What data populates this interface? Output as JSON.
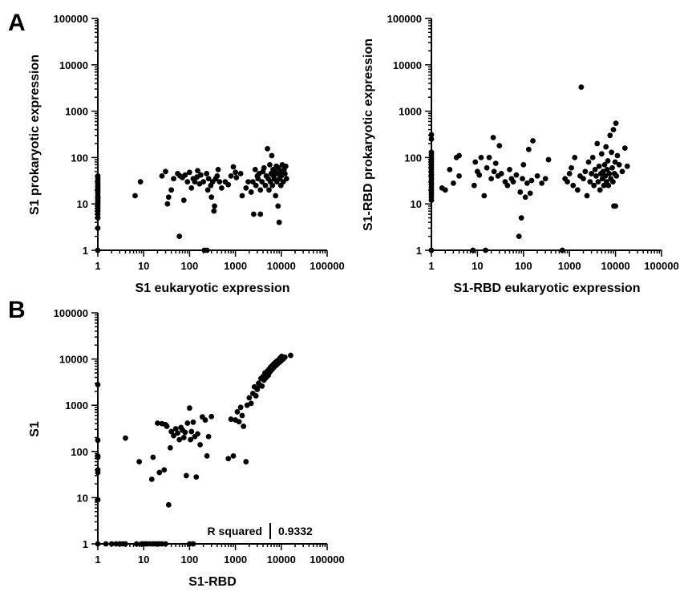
{
  "panels": {
    "a": {
      "letter": "A"
    },
    "b": {
      "letter": "B"
    }
  },
  "annotation": {
    "label": "R squared",
    "value": "0.9332"
  },
  "chart_data": [
    {
      "panel": "A",
      "type": "scatter",
      "title": "",
      "xlabel": "S1 eukaryotic expression",
      "ylabel": "S1 prokaryotic expression",
      "xscale": "log",
      "yscale": "log",
      "xlim": [
        1,
        100000
      ],
      "ylim": [
        1,
        100000
      ],
      "xticks": [
        "1",
        "10",
        "100",
        "1000",
        "10000",
        "100000"
      ],
      "yticks": [
        "1",
        "10",
        "100",
        "1000",
        "10000",
        "100000"
      ],
      "grid": false,
      "points": [
        [
          1,
          1
        ],
        [
          1,
          3
        ],
        [
          1,
          5
        ],
        [
          1,
          6
        ],
        [
          1,
          7
        ],
        [
          1,
          8
        ],
        [
          1,
          9
        ],
        [
          1,
          10
        ],
        [
          1,
          11
        ],
        [
          1,
          12
        ],
        [
          1,
          13
        ],
        [
          1,
          14
        ],
        [
          1,
          15
        ],
        [
          1,
          17
        ],
        [
          1,
          19
        ],
        [
          1,
          21
        ],
        [
          1,
          23
        ],
        [
          1,
          25
        ],
        [
          1,
          28
        ],
        [
          1,
          32
        ],
        [
          1,
          36
        ],
        [
          1,
          40
        ],
        [
          6.5,
          15
        ],
        [
          8.5,
          30
        ],
        [
          25,
          40
        ],
        [
          30,
          50
        ],
        [
          33,
          10
        ],
        [
          35,
          14
        ],
        [
          40,
          20
        ],
        [
          45,
          35
        ],
        [
          55,
          45
        ],
        [
          60,
          2
        ],
        [
          62,
          40
        ],
        [
          70,
          37
        ],
        [
          75,
          12
        ],
        [
          80,
          42
        ],
        [
          90,
          30
        ],
        [
          100,
          48
        ],
        [
          110,
          22
        ],
        [
          120,
          35
        ],
        [
          130,
          30
        ],
        [
          145,
          38
        ],
        [
          150,
          52
        ],
        [
          165,
          27
        ],
        [
          175,
          42
        ],
        [
          200,
          30
        ],
        [
          210,
          1
        ],
        [
          235,
          45
        ],
        [
          240,
          1
        ],
        [
          250,
          20
        ],
        [
          260,
          35
        ],
        [
          290,
          25
        ],
        [
          300,
          14
        ],
        [
          320,
          30
        ],
        [
          340,
          7
        ],
        [
          350,
          9
        ],
        [
          370,
          35
        ],
        [
          400,
          40
        ],
        [
          420,
          55
        ],
        [
          450,
          30
        ],
        [
          500,
          22
        ],
        [
          600,
          30
        ],
        [
          700,
          26
        ],
        [
          800,
          40
        ],
        [
          900,
          63
        ],
        [
          1000,
          48
        ],
        [
          1050,
          37
        ],
        [
          1300,
          45
        ],
        [
          1400,
          15
        ],
        [
          1700,
          22
        ],
        [
          1900,
          30
        ],
        [
          2200,
          18
        ],
        [
          2500,
          6
        ],
        [
          3000,
          40
        ],
        [
          3500,
          6
        ],
        [
          2400,
          30
        ],
        [
          2700,
          55
        ],
        [
          2800,
          25
        ],
        [
          3100,
          35
        ],
        [
          3300,
          45
        ],
        [
          3500,
          20
        ],
        [
          3800,
          30
        ],
        [
          4000,
          50
        ],
        [
          4200,
          60
        ],
        [
          4500,
          25
        ],
        [
          4700,
          40
        ],
        [
          5000,
          155
        ],
        [
          5200,
          35
        ],
        [
          5400,
          20
        ],
        [
          5600,
          70
        ],
        [
          5800,
          30
        ],
        [
          6000,
          45
        ],
        [
          6200,
          110
        ],
        [
          6400,
          25
        ],
        [
          6600,
          55
        ],
        [
          6800,
          40
        ],
        [
          7000,
          35
        ],
        [
          7200,
          50
        ],
        [
          7500,
          15
        ],
        [
          7800,
          65
        ],
        [
          8000,
          30
        ],
        [
          8200,
          45
        ],
        [
          8500,
          9
        ],
        [
          8700,
          60
        ],
        [
          9000,
          4
        ],
        [
          9200,
          35
        ],
        [
          9500,
          50
        ],
        [
          9800,
          25
        ],
        [
          10000,
          40
        ],
        [
          10500,
          70
        ],
        [
          11000,
          30
        ],
        [
          11500,
          55
        ],
        [
          12000,
          45
        ],
        [
          12500,
          65
        ],
        [
          13000,
          35
        ]
      ]
    },
    {
      "panel": "A",
      "type": "scatter",
      "title": "",
      "xlabel": "S1-RBD eukaryotic expression",
      "ylabel": "S1-RBD prokaryotic expression",
      "xscale": "log",
      "yscale": "log",
      "xlim": [
        1,
        100000
      ],
      "ylim": [
        1,
        100000
      ],
      "xticks": [
        "1",
        "10",
        "100",
        "1000",
        "10000",
        "100000"
      ],
      "yticks": [
        "1",
        "10",
        "100",
        "1000",
        "10000",
        "100000"
      ],
      "grid": false,
      "points": [
        [
          1,
          1
        ],
        [
          1,
          12
        ],
        [
          1,
          14
        ],
        [
          1,
          16
        ],
        [
          1,
          18
        ],
        [
          1,
          20
        ],
        [
          1,
          23
        ],
        [
          1,
          26
        ],
        [
          1,
          29
        ],
        [
          1,
          33
        ],
        [
          1,
          37
        ],
        [
          1,
          42
        ],
        [
          1,
          48
        ],
        [
          1,
          55
        ],
        [
          1,
          62
        ],
        [
          1,
          70
        ],
        [
          1,
          80
        ],
        [
          1,
          90
        ],
        [
          1,
          100
        ],
        [
          1,
          115
        ],
        [
          1,
          130
        ],
        [
          1,
          250
        ],
        [
          1,
          310
        ],
        [
          1.7,
          22
        ],
        [
          2,
          20
        ],
        [
          2.5,
          55
        ],
        [
          3,
          28
        ],
        [
          3.5,
          100
        ],
        [
          4,
          40
        ],
        [
          4,
          110
        ],
        [
          8,
          1
        ],
        [
          8.5,
          25
        ],
        [
          9,
          80
        ],
        [
          10,
          50
        ],
        [
          11,
          42
        ],
        [
          12,
          100
        ],
        [
          14,
          15
        ],
        [
          15,
          1
        ],
        [
          16,
          60
        ],
        [
          18,
          100
        ],
        [
          20,
          35
        ],
        [
          22,
          270
        ],
        [
          23,
          50
        ],
        [
          25,
          75
        ],
        [
          28,
          40
        ],
        [
          30,
          180
        ],
        [
          33,
          45
        ],
        [
          40,
          30
        ],
        [
          45,
          25
        ],
        [
          50,
          55
        ],
        [
          55,
          35
        ],
        [
          60,
          30
        ],
        [
          70,
          42
        ],
        [
          80,
          2
        ],
        [
          85,
          18
        ],
        [
          90,
          5
        ],
        [
          95,
          35
        ],
        [
          100,
          70
        ],
        [
          110,
          14
        ],
        [
          120,
          28
        ],
        [
          130,
          150
        ],
        [
          140,
          17
        ],
        [
          150,
          32
        ],
        [
          160,
          230
        ],
        [
          200,
          40
        ],
        [
          250,
          28
        ],
        [
          300,
          35
        ],
        [
          350,
          90
        ],
        [
          700,
          1
        ],
        [
          800,
          35
        ],
        [
          900,
          30
        ],
        [
          1000,
          45
        ],
        [
          1100,
          60
        ],
        [
          1200,
          25
        ],
        [
          1300,
          100
        ],
        [
          1500,
          20
        ],
        [
          1700,
          40
        ],
        [
          1800,
          3300
        ],
        [
          2000,
          35
        ],
        [
          2200,
          50
        ],
        [
          2400,
          15
        ],
        [
          2600,
          80
        ],
        [
          2800,
          30
        ],
        [
          3000,
          45
        ],
        [
          3200,
          100
        ],
        [
          3400,
          25
        ],
        [
          3600,
          55
        ],
        [
          3800,
          40
        ],
        [
          4000,
          200
        ],
        [
          4200,
          30
        ],
        [
          4400,
          65
        ],
        [
          4600,
          20
        ],
        [
          4800,
          45
        ],
        [
          5000,
          120
        ],
        [
          5200,
          35
        ],
        [
          5400,
          50
        ],
        [
          5600,
          25
        ],
        [
          5800,
          70
        ],
        [
          6000,
          40
        ],
        [
          6200,
          170
        ],
        [
          6400,
          30
        ],
        [
          6600,
          55
        ],
        [
          6800,
          85
        ],
        [
          7000,
          25
        ],
        [
          7300,
          45
        ],
        [
          7600,
          300
        ],
        [
          7900,
          35
        ],
        [
          8200,
          130
        ],
        [
          8500,
          60
        ],
        [
          8800,
          30
        ],
        [
          9000,
          400
        ],
        [
          9200,
          9
        ],
        [
          9500,
          45
        ],
        [
          9800,
          80
        ],
        [
          10000,
          9
        ],
        [
          10200,
          550
        ],
        [
          10500,
          40
        ],
        [
          11000,
          110
        ],
        [
          12000,
          70
        ],
        [
          14000,
          50
        ],
        [
          16000,
          160
        ],
        [
          18000,
          65
        ]
      ]
    },
    {
      "panel": "B",
      "type": "scatter",
      "title": "",
      "xlabel": "S1-RBD",
      "ylabel": "S1",
      "xscale": "log",
      "yscale": "log",
      "xlim": [
        1,
        100000
      ],
      "ylim": [
        1,
        100000
      ],
      "xticks": [
        "1",
        "10",
        "100",
        "1000",
        "10000",
        "100000"
      ],
      "yticks": [
        "1",
        "10",
        "100",
        "1000",
        "10000",
        "100000"
      ],
      "grid": false,
      "points": [
        [
          1,
          1
        ],
        [
          1,
          9
        ],
        [
          1,
          35
        ],
        [
          1,
          40
        ],
        [
          1,
          75
        ],
        [
          1,
          80
        ],
        [
          1,
          175
        ],
        [
          1,
          2800
        ],
        [
          1.5,
          1
        ],
        [
          2,
          1
        ],
        [
          2.5,
          1
        ],
        [
          3,
          1
        ],
        [
          3.5,
          1
        ],
        [
          4,
          1
        ],
        [
          4,
          195
        ],
        [
          7,
          1
        ],
        [
          8,
          60
        ],
        [
          9,
          1
        ],
        [
          10,
          1
        ],
        [
          11,
          1
        ],
        [
          12,
          1
        ],
        [
          14,
          1
        ],
        [
          16,
          1
        ],
        [
          18,
          1
        ],
        [
          20,
          1
        ],
        [
          22,
          1
        ],
        [
          25,
          1
        ],
        [
          30,
          1
        ],
        [
          100,
          1
        ],
        [
          120,
          1
        ],
        [
          15,
          25
        ],
        [
          16,
          75
        ],
        [
          20,
          410
        ],
        [
          22,
          35
        ],
        [
          25,
          400
        ],
        [
          28,
          40
        ],
        [
          30,
          380
        ],
        [
          32,
          350
        ],
        [
          35,
          7
        ],
        [
          38,
          120
        ],
        [
          40,
          270
        ],
        [
          45,
          220
        ],
        [
          50,
          310
        ],
        [
          55,
          250
        ],
        [
          60,
          180
        ],
        [
          65,
          330
        ],
        [
          70,
          290
        ],
        [
          75,
          200
        ],
        [
          80,
          260
        ],
        [
          85,
          30
        ],
        [
          90,
          410
        ],
        [
          100,
          870
        ],
        [
          105,
          180
        ],
        [
          110,
          270
        ],
        [
          120,
          430
        ],
        [
          130,
          210
        ],
        [
          140,
          28
        ],
        [
          150,
          240
        ],
        [
          170,
          140
        ],
        [
          190,
          560
        ],
        [
          220,
          480
        ],
        [
          240,
          80
        ],
        [
          260,
          210
        ],
        [
          300,
          570
        ],
        [
          700,
          70
        ],
        [
          800,
          500
        ],
        [
          900,
          80
        ],
        [
          1000,
          480
        ],
        [
          1100,
          720
        ],
        [
          1200,
          440
        ],
        [
          1300,
          900
        ],
        [
          1400,
          600
        ],
        [
          1500,
          350
        ],
        [
          1700,
          60
        ],
        [
          1800,
          1000
        ],
        [
          2000,
          1450
        ],
        [
          2200,
          1100
        ],
        [
          2400,
          1800
        ],
        [
          2600,
          2500
        ],
        [
          2800,
          1600
        ],
        [
          3000,
          2200
        ],
        [
          3200,
          3000
        ],
        [
          3400,
          2700
        ],
        [
          3600,
          3800
        ],
        [
          3800,
          2600
        ],
        [
          4000,
          4200
        ],
        [
          4200,
          3500
        ],
        [
          4400,
          5000
        ],
        [
          4600,
          3900
        ],
        [
          4800,
          4600
        ],
        [
          5000,
          5500
        ],
        [
          5200,
          4400
        ],
        [
          5400,
          6000
        ],
        [
          5600,
          5200
        ],
        [
          5800,
          6600
        ],
        [
          6000,
          5700
        ],
        [
          6200,
          7000
        ],
        [
          6400,
          6100
        ],
        [
          6600,
          7500
        ],
        [
          6800,
          6500
        ],
        [
          7000,
          8000
        ],
        [
          7200,
          7000
        ],
        [
          7500,
          8500
        ],
        [
          7800,
          7400
        ],
        [
          8000,
          9000
        ],
        [
          8300,
          7900
        ],
        [
          8600,
          9500
        ],
        [
          9000,
          8500
        ],
        [
          9400,
          10500
        ],
        [
          9800,
          9000
        ],
        [
          10200,
          11500
        ],
        [
          11000,
          10000
        ],
        [
          12000,
          11000
        ],
        [
          16000,
          12000
        ]
      ]
    }
  ]
}
